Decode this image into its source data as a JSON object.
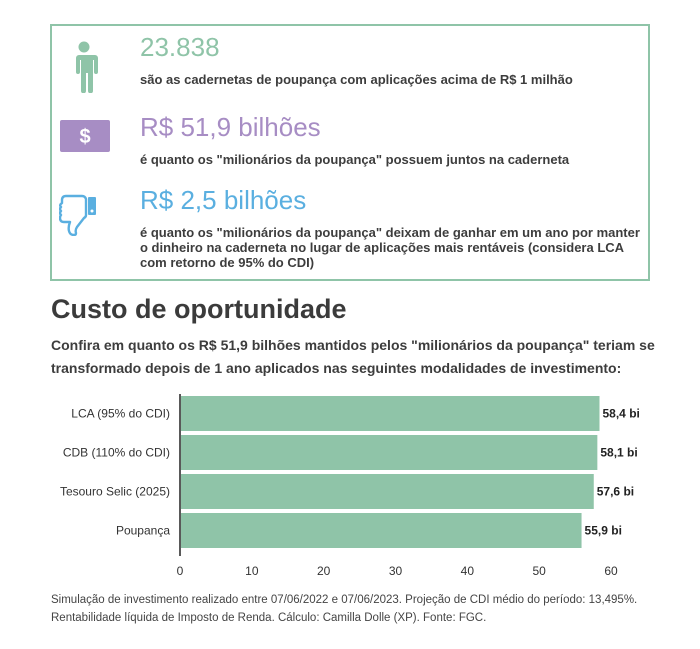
{
  "colors": {
    "green": "#8fc4a8",
    "purple": "#a78dc4",
    "blue": "#5aafe0",
    "box_border": "#8fc4a8",
    "bar": "#8fc4a8"
  },
  "stats": [
    {
      "icon": "person-icon",
      "value": "23.838",
      "description": "são as cadernetas de poupança com aplicações acima de R$ 1 milhão"
    },
    {
      "icon": "dollar-bill-icon",
      "value": "R$ 51,9 bilhões",
      "description": "é quanto os \"milionários da poupança\" possuem juntos na caderneta"
    },
    {
      "icon": "thumbs-down-icon",
      "value": "R$ 2,5 bilhões",
      "description": "é quanto os \"milionários da poupança\" deixam de ganhar em um ano por manter o dinheiro na caderneta no lugar de aplicações mais rentáveis (considera LCA com retorno de 95% do CDI)"
    }
  ],
  "section": {
    "title": "Custo de oportunidade",
    "subtitle": "Confira em quanto os R$ 51,9 bilhões mantidos pelos \"milionários da poupança\" teriam se transformado depois de 1 ano aplicados nas seguintes modalidades de investimento:"
  },
  "chart_data": {
    "type": "bar",
    "orientation": "horizontal",
    "categories": [
      "LCA (95% do CDI)",
      "CDB (110% do CDI)",
      "Tesouro Selic (2025)",
      "Poupança"
    ],
    "values": [
      58.4,
      58.1,
      57.6,
      55.9
    ],
    "value_labels": [
      "58,4 bi",
      "58,1 bi",
      "57,6 bi",
      "55,9 bi"
    ],
    "xlim": [
      0,
      60
    ],
    "xticks": [
      0,
      10,
      20,
      30,
      40,
      50,
      60
    ],
    "grid": false
  },
  "footnote": "Simulação de investimento realizado entre 07/06/2022 e 07/06/2023. Projeção de CDI médio do período: 13,495%. Rentabilidade líquida de Imposto de Renda. Cálculo: Camilla Dolle (XP). Fonte: FGC."
}
